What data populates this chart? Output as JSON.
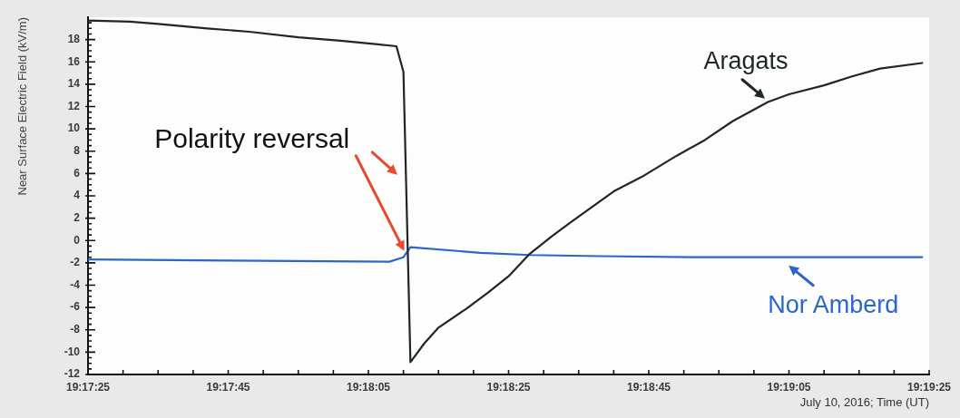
{
  "chart_data": {
    "type": "line",
    "xlabel": "July 10, 2016; Time (UT)",
    "ylabel": "Near Surface Electric Field (kV/m)",
    "xlim": [
      "2016-07-10T19:17:25",
      "2016-07-10T19:19:25"
    ],
    "xticks": [
      {
        "value": "2016-07-10T19:17:25",
        "label": "19:17:25"
      },
      {
        "value": "2016-07-10T19:17:30",
        "label": null
      },
      {
        "value": "2016-07-10T19:17:35",
        "label": null
      },
      {
        "value": "2016-07-10T19:17:40",
        "label": null
      },
      {
        "value": "2016-07-10T19:17:45",
        "label": "19:17:45"
      },
      {
        "value": "2016-07-10T19:17:50",
        "label": null
      },
      {
        "value": "2016-07-10T19:17:55",
        "label": null
      },
      {
        "value": "2016-07-10T19:18:00",
        "label": null
      },
      {
        "value": "2016-07-10T19:18:05",
        "label": "19:18:05"
      },
      {
        "value": "2016-07-10T19:18:10",
        "label": null
      },
      {
        "value": "2016-07-10T19:18:15",
        "label": null
      },
      {
        "value": "2016-07-10T19:18:20",
        "label": null
      },
      {
        "value": "2016-07-10T19:18:25",
        "label": "19:18:25"
      },
      {
        "value": "2016-07-10T19:18:30",
        "label": null
      },
      {
        "value": "2016-07-10T19:18:35",
        "label": null
      },
      {
        "value": "2016-07-10T19:18:40",
        "label": null
      },
      {
        "value": "2016-07-10T19:18:45",
        "label": "19:18:45"
      },
      {
        "value": "2016-07-10T19:18:50",
        "label": null
      },
      {
        "value": "2016-07-10T19:18:55",
        "label": null
      },
      {
        "value": "2016-07-10T19:19:00",
        "label": null
      },
      {
        "value": "2016-07-10T19:19:05",
        "label": "19:19:05"
      },
      {
        "value": "2016-07-10T19:19:10",
        "label": null
      },
      {
        "value": "2016-07-10T19:19:15",
        "label": null
      },
      {
        "value": "2016-07-10T19:19:20",
        "label": null
      },
      {
        "value": "2016-07-10T19:19:25",
        "label": "19:19:25"
      }
    ],
    "ylim": [
      -12,
      20
    ],
    "yticks": [
      -12,
      {
        "value": -11.5,
        "label": null
      },
      {
        "value": -11,
        "label": null
      },
      {
        "value": -10.5,
        "label": null
      },
      -10,
      {
        "value": -9.5,
        "label": null
      },
      {
        "value": -9,
        "label": null
      },
      {
        "value": -8.5,
        "label": null
      },
      -8,
      {
        "value": -7.5,
        "label": null
      },
      {
        "value": -7,
        "label": null
      },
      {
        "value": -6.5,
        "label": null
      },
      -6,
      {
        "value": -5.5,
        "label": null
      },
      {
        "value": -5,
        "label": null
      },
      {
        "value": -4.5,
        "label": null
      },
      -4,
      {
        "value": -3.5,
        "label": null
      },
      {
        "value": -3,
        "label": null
      },
      {
        "value": -2.5,
        "label": null
      },
      -2,
      {
        "value": -1.5,
        "label": null
      },
      {
        "value": -1,
        "label": null
      },
      {
        "value": -0.5,
        "label": null
      },
      0,
      {
        "value": 0.5,
        "label": null
      },
      {
        "value": 1,
        "label": null
      },
      {
        "value": 1.5,
        "label": null
      },
      2,
      {
        "value": 2.5,
        "label": null
      },
      {
        "value": 3,
        "label": null
      },
      {
        "value": 3.5,
        "label": null
      },
      4,
      {
        "value": 4.5,
        "label": null
      },
      {
        "value": 5,
        "label": null
      },
      {
        "value": 5.5,
        "label": null
      },
      6,
      {
        "value": 6.5,
        "label": null
      },
      {
        "value": 7,
        "label": null
      },
      {
        "value": 7.5,
        "label": null
      },
      8,
      {
        "value": 8.5,
        "label": null
      },
      {
        "value": 9,
        "label": null
      },
      {
        "value": 9.5,
        "label": null
      },
      10,
      {
        "value": 10.5,
        "label": null
      },
      {
        "value": 11,
        "label": null
      },
      {
        "value": 11.5,
        "label": null
      },
      12,
      {
        "value": 12.5,
        "label": null
      },
      {
        "value": 13,
        "label": null
      },
      {
        "value": 13.5,
        "label": null
      },
      14,
      {
        "value": 14.5,
        "label": null
      },
      {
        "value": 15,
        "label": null
      },
      {
        "value": 15.5,
        "label": null
      },
      16,
      {
        "value": 16.5,
        "label": null
      },
      {
        "value": 17,
        "label": null
      },
      {
        "value": 17.5,
        "label": null
      },
      18,
      {
        "value": 18.5,
        "label": null
      },
      {
        "value": 19,
        "label": null
      },
      {
        "value": 19.5,
        "label": null
      }
    ],
    "series": [
      {
        "name": "Aragats",
        "color": "#1e2626",
        "x": [
          "2016-07-10T19:17:25",
          "2016-07-10T19:17:31",
          "2016-07-10T19:17:35",
          "2016-07-10T19:17:42",
          "2016-07-10T19:17:48",
          "2016-07-10T19:17:55",
          "2016-07-10T19:18:01",
          "2016-07-10T19:18:06",
          "2016-07-10T19:18:09",
          "2016-07-10T19:18:10",
          "2016-07-10T19:18:11",
          "2016-07-10T19:18:13",
          "2016-07-10T19:18:15",
          "2016-07-10T19:18:19",
          "2016-07-10T19:18:22",
          "2016-07-10T19:18:25",
          "2016-07-10T19:18:28",
          "2016-07-10T19:18:31",
          "2016-07-10T19:18:34",
          "2016-07-10T19:18:40",
          "2016-07-10T19:18:44",
          "2016-07-10T19:18:49",
          "2016-07-10T19:18:53",
          "2016-07-10T19:18:57",
          "2016-07-10T19:19:02",
          "2016-07-10T19:19:05",
          "2016-07-10T19:19:10",
          "2016-07-10T19:19:14",
          "2016-07-10T19:19:18",
          "2016-07-10T19:19:24"
        ],
        "values": [
          19.7,
          19.6,
          19.4,
          19.0,
          18.7,
          18.2,
          17.9,
          17.6,
          17.4,
          15.1,
          -10.9,
          -9.2,
          -7.8,
          -6.1,
          -4.7,
          -3.2,
          -1.2,
          0.3,
          1.7,
          4.4,
          5.7,
          7.6,
          9.0,
          10.7,
          12.4,
          13.1,
          13.9,
          14.7,
          15.4,
          15.9
        ]
      },
      {
        "name": "Nor Amberd",
        "color": "#2b66c9",
        "x": [
          "2016-07-10T19:17:25",
          "2016-07-10T19:17:45",
          "2016-07-10T19:18:08",
          "2016-07-10T19:18:10",
          "2016-07-10T19:18:11",
          "2016-07-10T19:18:21",
          "2016-07-10T19:18:28",
          "2016-07-10T19:18:38",
          "2016-07-10T19:18:51",
          "2016-07-10T19:19:24"
        ],
        "values": [
          -1.7,
          -1.8,
          -1.9,
          -1.5,
          -0.6,
          -1.1,
          -1.3,
          -1.4,
          -1.5,
          -1.5
        ]
      }
    ],
    "annotations": [
      "Polarity reversal"
    ]
  }
}
